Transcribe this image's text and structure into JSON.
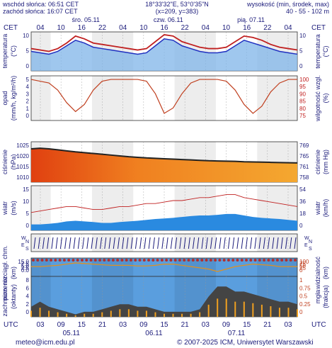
{
  "header": {
    "sunrise": "wschód słońca: 06:51 CET",
    "sunset": "zachód słońca: 16:07 CET",
    "coords_line1": "18°33'32\"E, 53°0'35\"N",
    "coords_line2": "(x=209, y=383)",
    "altitude_label": "wysokość (min, środek, max)",
    "altitude_values": "40 - 55 - 102 m"
  },
  "top_axis": {
    "tz": "CET",
    "hours": [
      "04",
      "10",
      "16",
      "22",
      "04",
      "10",
      "16",
      "22",
      "04",
      "10",
      "16",
      "22",
      "04"
    ],
    "day_labels": [
      "śro. 05.11",
      "czw. 06.11",
      "pią. 07.11"
    ]
  },
  "bottom_axis": {
    "tz": "UTC",
    "hours": [
      "03",
      "09",
      "15",
      "21",
      "03",
      "09",
      "15",
      "21",
      "03",
      "09",
      "15",
      "21",
      "03"
    ],
    "dates": [
      "05.11",
      "06.11",
      "07.11"
    ]
  },
  "panels": {
    "temperature": {
      "left_label": "temperatura",
      "left_unit": "(°C)",
      "right_label": "temperatura",
      "right_unit": "(°C)",
      "ticks": [
        "10",
        "5",
        "0"
      ]
    },
    "precip": {
      "left_label": "opad",
      "left_unit": "(mm/h, kg/m²/h)",
      "right_label": "wilgotność wzgl.",
      "right_unit": "(%)",
      "left_ticks": [
        "5",
        "4",
        "3",
        "2",
        "1",
        "0"
      ],
      "right_ticks": [
        "100",
        "95",
        "90",
        "85",
        "80",
        "75"
      ]
    },
    "pressure": {
      "left_label": "ciśnienie",
      "left_unit": "(hPa)",
      "right_label": "ciśnienie",
      "right_unit": "(mm Hg)",
      "left_ticks": [
        "1025",
        "1020",
        "1015",
        "1010"
      ],
      "right_ticks": [
        "769",
        "765",
        "761",
        "758"
      ]
    },
    "wind": {
      "left_label": "wiatr",
      "left_unit": "(m/s)",
      "right_label": "wiatr",
      "right_unit": "(km/h)",
      "left_ticks": [
        "15",
        "10",
        "5",
        "0"
      ],
      "right_ticks": [
        "54",
        "36",
        "18",
        "0"
      ]
    },
    "direction": {
      "left_letters": [
        "W",
        "N",
        "E",
        "S"
      ],
      "right_letters": [
        "W",
        "N",
        "E",
        "S"
      ]
    },
    "clouds": {
      "left_label": "pion. rozciągł. chm.",
      "left_unit": "(km)",
      "right_label": "widzialność",
      "right_unit": "(km)",
      "left_ticks": [
        "15.0",
        "7.5",
        "5.0",
        "2.5",
        "0.0"
      ],
      "right_ticks": [
        "100",
        "75",
        "50",
        "25",
        "0"
      ]
    },
    "cloudcover": {
      "left_label": "zachmurzenie",
      "left_unit": "(oktanty)",
      "right_label": "mgła",
      "right_unit": "(frakcja)",
      "left_ticks": [
        "8",
        "6",
        "4",
        "2",
        "0"
      ],
      "right_ticks": [
        "1",
        "0.75",
        "0.5",
        "0.25",
        "0"
      ]
    }
  },
  "footer": {
    "email": "meteo@icm.edu.pl",
    "copyright": "© 2007-2025 ICM, Uniwersytet Warszawski"
  },
  "chart_data": [
    {
      "type": "line",
      "name": "temperature",
      "series": [
        {
          "values": [
            5,
            4.5,
            4,
            5,
            7,
            9,
            8,
            6.5,
            6,
            5.5,
            5,
            4.5,
            4,
            4.5,
            7,
            9.5,
            9,
            7,
            6,
            5,
            4.5,
            4.5,
            5,
            7,
            9,
            8,
            7,
            6,
            5,
            4.5,
            4
          ]
        },
        {
          "values": [
            6,
            5.5,
            5,
            6,
            8,
            10.5,
            9.5,
            8,
            7.5,
            7,
            6.5,
            6,
            5.5,
            6,
            8.5,
            11,
            10.5,
            8.5,
            7.5,
            6.5,
            6,
            6,
            6.5,
            8.5,
            10.5,
            10,
            9,
            7.5,
            6.5,
            6,
            5.5
          ]
        }
      ],
      "ylim": [
        -2,
        12
      ]
    },
    {
      "type": "line",
      "name": "humidity",
      "values": [
        98,
        97,
        96,
        92,
        85,
        80,
        84,
        92,
        97,
        98,
        98,
        98,
        98,
        97,
        90,
        79,
        82,
        90,
        96,
        98,
        98,
        98,
        97,
        92,
        84,
        79,
        83,
        91,
        96,
        98,
        98
      ],
      "ylim": [
        75,
        100
      ]
    },
    {
      "type": "area",
      "name": "pressure",
      "values": [
        1024.5,
        1024.8,
        1024.5,
        1024,
        1023.5,
        1023,
        1022.6,
        1022.2,
        1021.8,
        1021.4,
        1021,
        1020.6,
        1020.3,
        1020,
        1019.8,
        1019.6,
        1019.4,
        1019.2,
        1019,
        1018.8,
        1018.6,
        1018.5,
        1018.4,
        1018.3,
        1018.1,
        1018,
        1017.9,
        1017.8,
        1017.7,
        1017.6,
        1017.5
      ],
      "ylim": [
        1008,
        1028
      ]
    },
    {
      "type": "area",
      "name": "wind",
      "series": [
        {
          "values": [
            2,
            2,
            2.2,
            2.5,
            3,
            3.2,
            3,
            2.8,
            2.5,
            2.5,
            2.8,
            3,
            3.2,
            3.5,
            3.8,
            4,
            4.2,
            4.5,
            4.8,
            5,
            5,
            5.2,
            5.5,
            5.5,
            5,
            4.5,
            4.2,
            4,
            3.8,
            3.5,
            3.2
          ]
        },
        {
          "values": [
            6,
            6.5,
            7,
            7.5,
            8,
            8,
            7.5,
            7,
            7,
            7.5,
            8,
            8,
            8.5,
            9,
            9,
            9.5,
            10,
            10,
            10.5,
            11,
            11,
            11.5,
            12,
            12,
            11,
            10.5,
            10,
            9.5,
            9,
            8.5,
            8
          ]
        }
      ],
      "ylim": [
        0,
        15
      ]
    },
    {
      "type": "line",
      "name": "visibility",
      "values": [
        8,
        8,
        8.5,
        9,
        10,
        11,
        10.5,
        10,
        9.5,
        9,
        9,
        9,
        8.5,
        8.5,
        9,
        10,
        10,
        9,
        8,
        7,
        6,
        4,
        6,
        8,
        9,
        10,
        9.5,
        9,
        8,
        8,
        8
      ],
      "ylim": [
        0,
        15
      ]
    },
    {
      "type": "bar",
      "name": "cloudcover",
      "values": [
        2,
        3,
        2,
        1.5,
        1,
        0.5,
        1,
        1,
        1.5,
        2,
        2.5,
        2.5,
        2,
        2,
        1.5,
        1,
        1,
        1,
        1,
        1.5,
        4,
        6,
        6,
        5,
        5,
        4.5,
        4,
        3.5,
        3,
        3,
        2.5
      ],
      "ylim": [
        0,
        8
      ]
    }
  ]
}
